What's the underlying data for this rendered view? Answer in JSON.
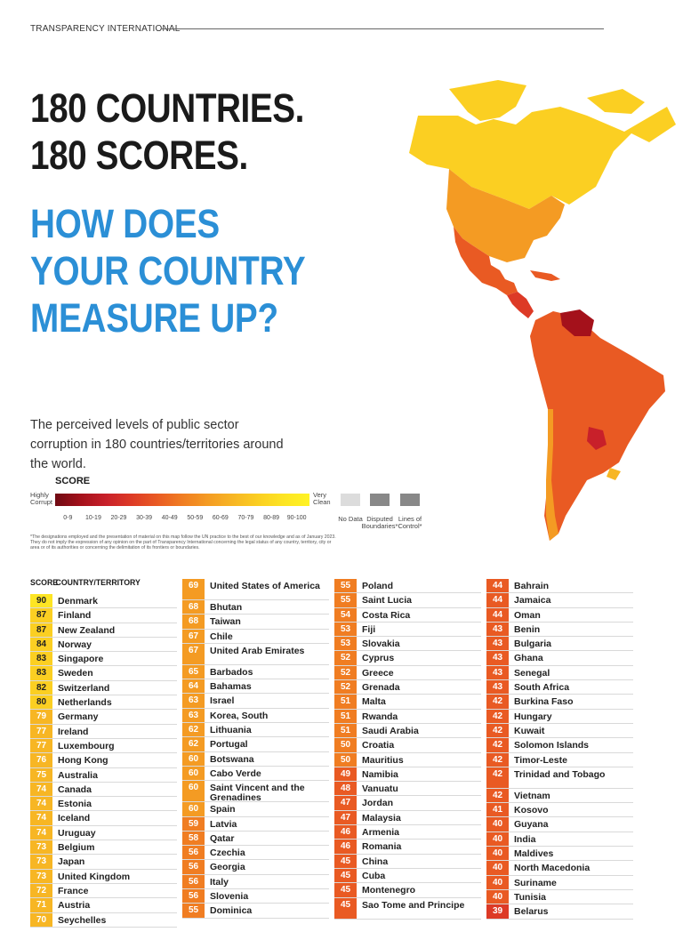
{
  "header": {
    "org": "TRANSPARENCY INTERNATIONAL"
  },
  "title": {
    "line1": "180 COUNTRIES.",
    "line2": "180 SCORES.",
    "q1": "HOW DOES",
    "q2": "YOUR COUNTRY",
    "q3": "MEASURE UP?"
  },
  "lead": "The perceived levels of public sector corruption in 180 countries/territories around the world.",
  "legend": {
    "title": "SCORE",
    "left": "Highly Corrupt",
    "right": "Very Clean",
    "ranges": [
      "0-9",
      "10-19",
      "20-29",
      "30-39",
      "40-49",
      "50-59",
      "60-69",
      "70-79",
      "80-89",
      "90-100"
    ],
    "nodata": "No Data",
    "disputed": "Disputed Boundaries*",
    "control": "Lines of Control*"
  },
  "note": "*The designations employed and the presentation of material on this map follow the UN practice to the best of our knowledge and as of January 2023. They do not imply the expression of any opinion on the part of Transparency International concerning the legal status of any country, territory, city or area or of its authorities or concerning the delimitation of its frontiers or boundaries.",
  "table_head": {
    "score": "SCORE",
    "country": "COUNTRY/TERRITORY"
  },
  "colors": {
    "90-100": "#fde524",
    "80-89": "#fbcf22",
    "70-79": "#f7b624",
    "60-69": "#f49b23",
    "50-59": "#f07d22",
    "40-49": "#e95a23",
    "30-39": "#dd3a26"
  },
  "columns": [
    [
      {
        "s": "90",
        "c": "Denmark"
      },
      {
        "s": "87",
        "c": "Finland"
      },
      {
        "s": "87",
        "c": "New Zealand"
      },
      {
        "s": "84",
        "c": "Norway"
      },
      {
        "s": "83",
        "c": "Singapore"
      },
      {
        "s": "83",
        "c": "Sweden"
      },
      {
        "s": "82",
        "c": "Switzerland"
      },
      {
        "s": "80",
        "c": "Netherlands"
      },
      {
        "s": "79",
        "c": "Germany"
      },
      {
        "s": "77",
        "c": "Ireland"
      },
      {
        "s": "77",
        "c": "Luxembourg"
      },
      {
        "s": "76",
        "c": "Hong Kong"
      },
      {
        "s": "75",
        "c": "Australia"
      },
      {
        "s": "74",
        "c": "Canada"
      },
      {
        "s": "74",
        "c": "Estonia"
      },
      {
        "s": "74",
        "c": "Iceland"
      },
      {
        "s": "74",
        "c": "Uruguay"
      },
      {
        "s": "73",
        "c": "Belgium"
      },
      {
        "s": "73",
        "c": "Japan"
      },
      {
        "s": "73",
        "c": "United Kingdom"
      },
      {
        "s": "72",
        "c": "France"
      },
      {
        "s": "71",
        "c": "Austria"
      },
      {
        "s": "70",
        "c": "Seychelles"
      }
    ],
    [
      {
        "s": "69",
        "c": "United States of America",
        "two": true
      },
      {
        "s": "68",
        "c": "Bhutan"
      },
      {
        "s": "68",
        "c": "Taiwan"
      },
      {
        "s": "67",
        "c": "Chile"
      },
      {
        "s": "67",
        "c": "United Arab Emirates",
        "two": true
      },
      {
        "s": "65",
        "c": "Barbados"
      },
      {
        "s": "64",
        "c": "Bahamas"
      },
      {
        "s": "63",
        "c": "Israel"
      },
      {
        "s": "63",
        "c": "Korea, South"
      },
      {
        "s": "62",
        "c": "Lithuania"
      },
      {
        "s": "62",
        "c": "Portugal"
      },
      {
        "s": "60",
        "c": "Botswana"
      },
      {
        "s": "60",
        "c": "Cabo Verde"
      },
      {
        "s": "60",
        "c": "Saint Vincent and the Grenadines",
        "two": true
      },
      {
        "s": "60",
        "c": "Spain"
      },
      {
        "s": "59",
        "c": "Latvia"
      },
      {
        "s": "58",
        "c": "Qatar"
      },
      {
        "s": "56",
        "c": "Czechia"
      },
      {
        "s": "56",
        "c": "Georgia"
      },
      {
        "s": "56",
        "c": "Italy"
      },
      {
        "s": "56",
        "c": "Slovenia"
      },
      {
        "s": "55",
        "c": "Dominica"
      }
    ],
    [
      {
        "s": "55",
        "c": "Poland"
      },
      {
        "s": "55",
        "c": "Saint Lucia"
      },
      {
        "s": "54",
        "c": "Costa Rica"
      },
      {
        "s": "53",
        "c": "Fiji"
      },
      {
        "s": "53",
        "c": "Slovakia"
      },
      {
        "s": "52",
        "c": "Cyprus"
      },
      {
        "s": "52",
        "c": "Greece"
      },
      {
        "s": "52",
        "c": "Grenada"
      },
      {
        "s": "51",
        "c": "Malta"
      },
      {
        "s": "51",
        "c": "Rwanda"
      },
      {
        "s": "51",
        "c": "Saudi Arabia"
      },
      {
        "s": "50",
        "c": "Croatia"
      },
      {
        "s": "50",
        "c": "Mauritius"
      },
      {
        "s": "49",
        "c": "Namibia"
      },
      {
        "s": "48",
        "c": "Vanuatu"
      },
      {
        "s": "47",
        "c": "Jordan"
      },
      {
        "s": "47",
        "c": "Malaysia"
      },
      {
        "s": "46",
        "c": "Armenia"
      },
      {
        "s": "46",
        "c": "Romania"
      },
      {
        "s": "45",
        "c": "China"
      },
      {
        "s": "45",
        "c": "Cuba"
      },
      {
        "s": "45",
        "c": "Montenegro"
      },
      {
        "s": "45",
        "c": "Sao Tome and Principe",
        "two": true
      }
    ],
    [
      {
        "s": "44",
        "c": "Bahrain"
      },
      {
        "s": "44",
        "c": "Jamaica"
      },
      {
        "s": "44",
        "c": "Oman"
      },
      {
        "s": "43",
        "c": "Benin"
      },
      {
        "s": "43",
        "c": "Bulgaria"
      },
      {
        "s": "43",
        "c": "Ghana"
      },
      {
        "s": "43",
        "c": "Senegal"
      },
      {
        "s": "43",
        "c": "South Africa"
      },
      {
        "s": "42",
        "c": "Burkina Faso"
      },
      {
        "s": "42",
        "c": "Hungary"
      },
      {
        "s": "42",
        "c": "Kuwait"
      },
      {
        "s": "42",
        "c": "Solomon Islands"
      },
      {
        "s": "42",
        "c": "Timor-Leste"
      },
      {
        "s": "42",
        "c": "Trinidad and Tobago",
        "two": true
      },
      {
        "s": "42",
        "c": "Vietnam"
      },
      {
        "s": "41",
        "c": "Kosovo"
      },
      {
        "s": "40",
        "c": "Guyana"
      },
      {
        "s": "40",
        "c": "India"
      },
      {
        "s": "40",
        "c": "Maldives"
      },
      {
        "s": "40",
        "c": "North Macedonia"
      },
      {
        "s": "40",
        "c": "Suriname"
      },
      {
        "s": "40",
        "c": "Tunisia"
      },
      {
        "s": "39",
        "c": "Belarus"
      }
    ]
  ]
}
